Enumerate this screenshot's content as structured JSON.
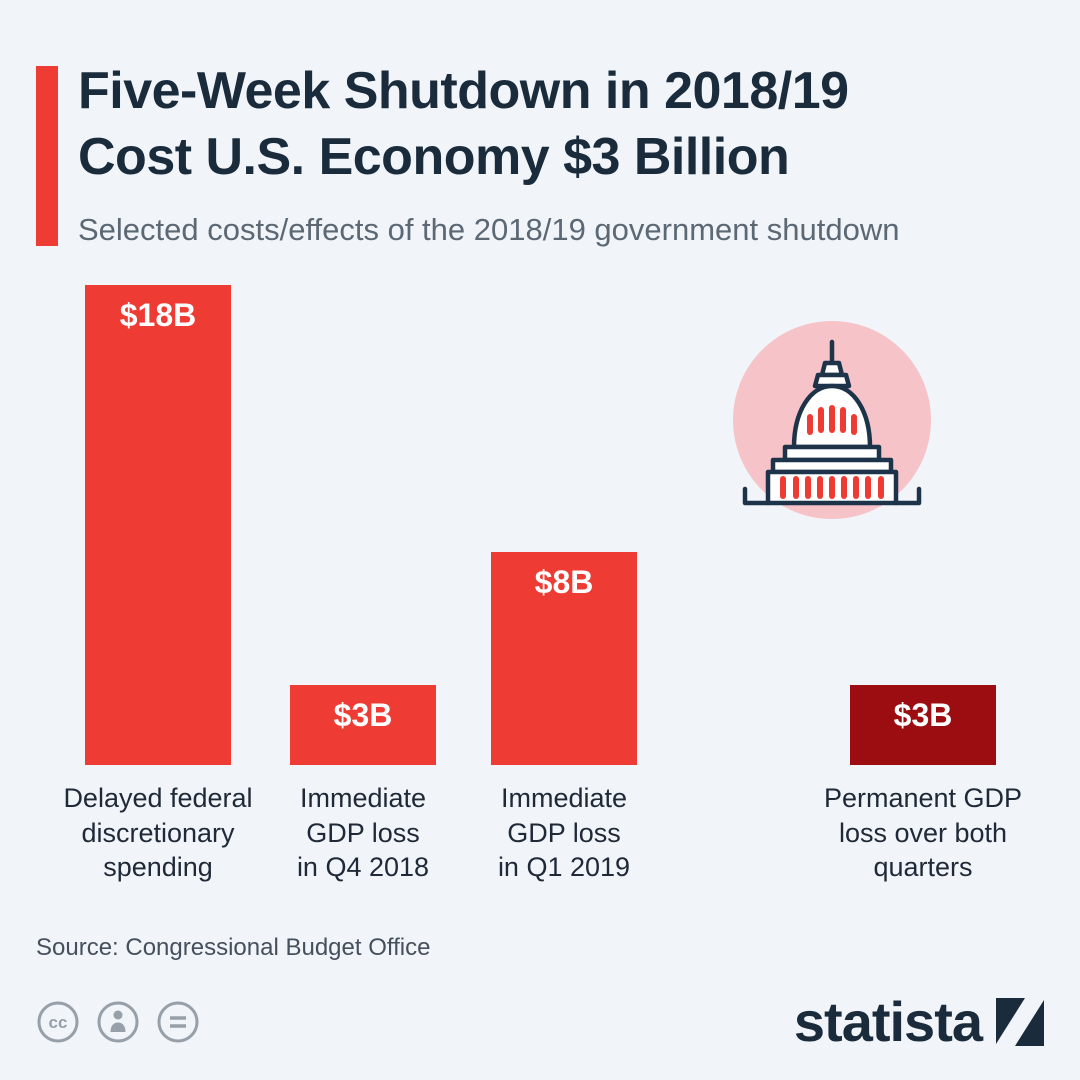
{
  "page": {
    "background": "#f1f4f9"
  },
  "header": {
    "title": "Five-Week Shutdown in 2018/19\nCost U.S. Economy $3 Billion",
    "subtitle": "Selected costs/effects of the 2018/19 government shutdown",
    "accent_color": "#ee3b33",
    "title_color": "#1a2b3c"
  },
  "chart_data": {
    "type": "bar",
    "title": "Five-Week Shutdown in 2018/19 Cost U.S. Economy $3 Billion",
    "subtitle": "Selected costs/effects of the 2018/19 government shutdown",
    "unit": "billion USD",
    "categories": [
      "Delayed federal\ndiscretionary\nspending",
      "Immediate\nGDP loss\nin Q4 2018",
      "Immediate\nGDP loss\nin Q1 2019",
      "Permanent GDP\nloss over both\nquarters"
    ],
    "values": [
      18,
      3,
      8,
      3
    ],
    "value_labels": [
      "$18B",
      "$3B",
      "$8B",
      "$3B"
    ],
    "bar_colors": [
      "#ee3b33",
      "#ee3b33",
      "#ee3b33",
      "#9c0d12"
    ],
    "ylim": [
      0,
      18
    ],
    "grid": false,
    "legend": false
  },
  "illustration": {
    "name": "us-capitol-icon",
    "circle_color": "#f6c3c8",
    "line_color": "#1d3349",
    "detail_color": "#ee3b33"
  },
  "footer": {
    "source": "Source: Congressional Budget Office",
    "brand": "statista",
    "license_icons": [
      "cc-icon",
      "attribution-person-icon",
      "equals-icon"
    ]
  }
}
